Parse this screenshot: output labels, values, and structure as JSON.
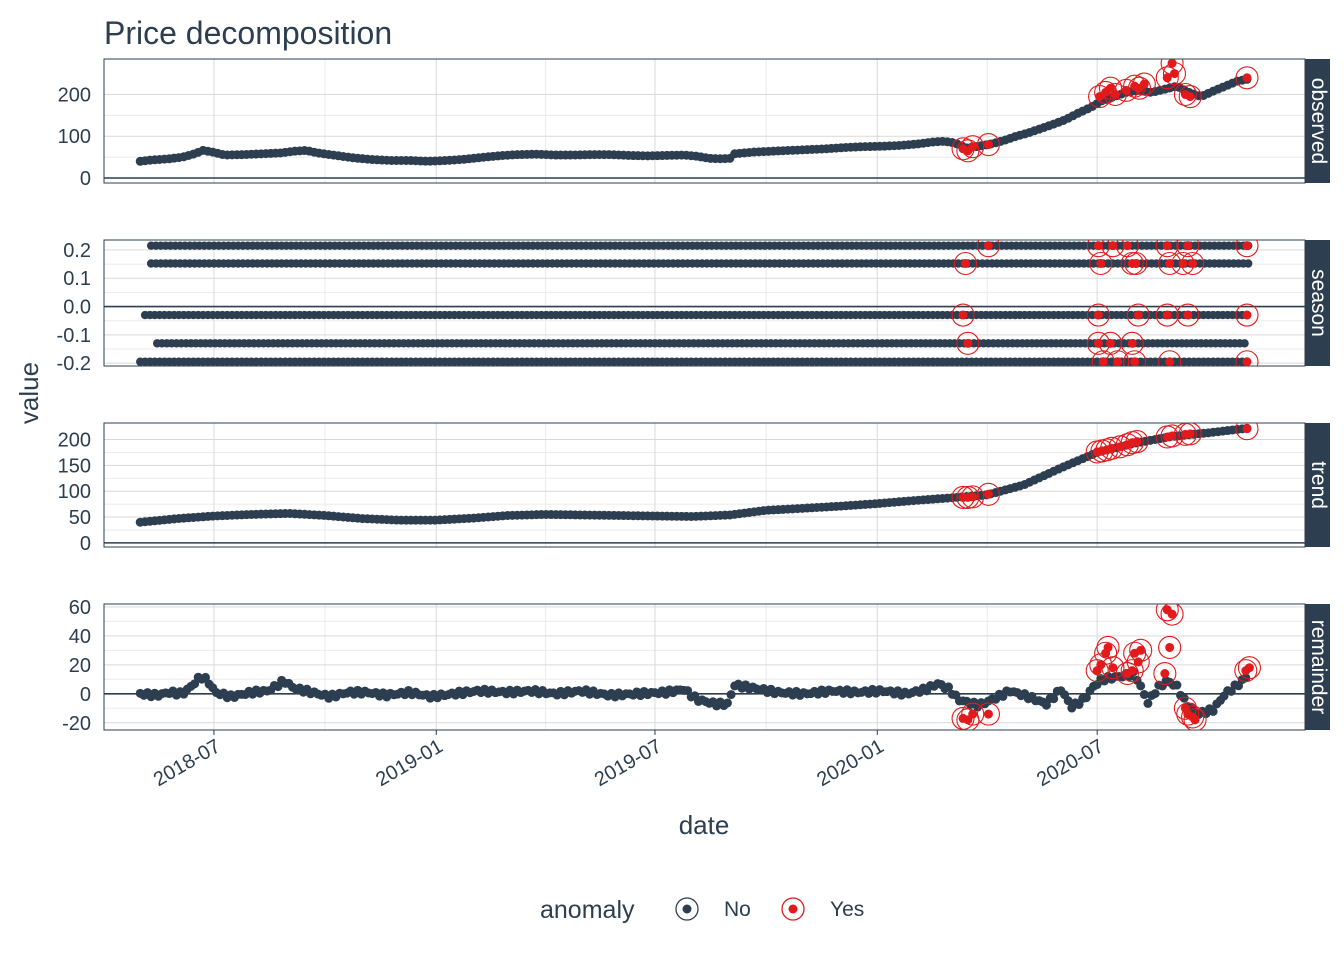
{
  "chart_data": {
    "type": "scatter",
    "title": "Price decomposition",
    "xlabel": "date",
    "ylabel": "value",
    "x_range": [
      "2018-04-01",
      "2020-12-20"
    ],
    "x_ticks": [
      "2018-07",
      "2019-01",
      "2019-07",
      "2020-01",
      "2020-07"
    ],
    "x_tick_dates": [
      "2018-07-01",
      "2019-01-01",
      "2019-07-01",
      "2020-01-01",
      "2020-07-01"
    ],
    "grid": true,
    "legend": {
      "title": "anomaly",
      "position": "bottom",
      "entries": [
        {
          "label": "No",
          "color": "#2c3e50"
        },
        {
          "label": "Yes",
          "color": "#e31a1c"
        }
      ]
    },
    "colors": {
      "normal": "#2c3e50",
      "anomaly": "#e31a1c",
      "strip": "#2c3e50"
    },
    "panels": [
      {
        "name": "observed",
        "ylim": [
          -12,
          285
        ],
        "y_ticks": [
          0,
          100,
          200
        ],
        "y_tick_labels": [
          "0",
          "100",
          "200"
        ],
        "series": [
          [
            "2018-05-01",
            40
          ],
          [
            "2018-05-10",
            43
          ],
          [
            "2018-05-25",
            46
          ],
          [
            "2018-06-05",
            50
          ],
          [
            "2018-06-15",
            58
          ],
          [
            "2018-06-22",
            66
          ],
          [
            "2018-06-30",
            62
          ],
          [
            "2018-07-10",
            55
          ],
          [
            "2018-07-25",
            56
          ],
          [
            "2018-08-10",
            58
          ],
          [
            "2018-08-25",
            60
          ],
          [
            "2018-09-05",
            64
          ],
          [
            "2018-09-15",
            66
          ],
          [
            "2018-09-25",
            60
          ],
          [
            "2018-10-10",
            54
          ],
          [
            "2018-10-25",
            48
          ],
          [
            "2018-11-10",
            44
          ],
          [
            "2018-11-25",
            42
          ],
          [
            "2018-12-10",
            42
          ],
          [
            "2018-12-25",
            40
          ],
          [
            "2019-01-10",
            42
          ],
          [
            "2019-01-25",
            45
          ],
          [
            "2019-02-10",
            50
          ],
          [
            "2019-02-25",
            54
          ],
          [
            "2019-03-10",
            56
          ],
          [
            "2019-03-25",
            57
          ],
          [
            "2019-04-10",
            55
          ],
          [
            "2019-04-25",
            55
          ],
          [
            "2019-05-10",
            56
          ],
          [
            "2019-05-25",
            56
          ],
          [
            "2019-06-10",
            54
          ],
          [
            "2019-06-25",
            53
          ],
          [
            "2019-07-10",
            54
          ],
          [
            "2019-07-25",
            55
          ],
          [
            "2019-08-05",
            52
          ],
          [
            "2019-08-15",
            47
          ],
          [
            "2019-08-25",
            46
          ],
          [
            "2019-09-01",
            47
          ],
          [
            "2019-09-05",
            58
          ],
          [
            "2019-09-20",
            62
          ],
          [
            "2019-10-05",
            64
          ],
          [
            "2019-10-20",
            66
          ],
          [
            "2019-11-05",
            68
          ],
          [
            "2019-11-20",
            70
          ],
          [
            "2019-12-05",
            73
          ],
          [
            "2019-12-20",
            75
          ],
          [
            "2020-01-05",
            76
          ],
          [
            "2020-01-20",
            78
          ],
          [
            "2020-02-05",
            82
          ],
          [
            "2020-02-15",
            86
          ],
          [
            "2020-02-25",
            88
          ],
          [
            "2020-03-05",
            84
          ],
          [
            "2020-03-15",
            72
          ],
          [
            "2020-03-25",
            76
          ],
          [
            "2020-04-05",
            82
          ],
          [
            "2020-04-15",
            90
          ],
          [
            "2020-04-25",
            100
          ],
          [
            "2020-05-05",
            108
          ],
          [
            "2020-05-15",
            118
          ],
          [
            "2020-05-25",
            128
          ],
          [
            "2020-06-05",
            140
          ],
          [
            "2020-06-15",
            155
          ],
          [
            "2020-06-25",
            168
          ],
          [
            "2020-07-05",
            185
          ],
          [
            "2020-07-15",
            195
          ],
          [
            "2020-07-25",
            205
          ],
          [
            "2020-08-05",
            210
          ],
          [
            "2020-08-15",
            205
          ],
          [
            "2020-08-25",
            212
          ],
          [
            "2020-09-05",
            220
          ],
          [
            "2020-09-15",
            205
          ],
          [
            "2020-09-25",
            195
          ],
          [
            "2020-10-05",
            208
          ],
          [
            "2020-10-15",
            220
          ],
          [
            "2020-10-25",
            232
          ],
          [
            "2020-11-05",
            238
          ]
        ],
        "anomalies": [
          [
            "2020-03-12",
            70
          ],
          [
            "2020-03-16",
            65
          ],
          [
            "2020-03-20",
            75
          ],
          [
            "2020-04-02",
            80
          ],
          [
            "2020-07-03",
            195
          ],
          [
            "2020-07-08",
            205
          ],
          [
            "2020-07-12",
            215
          ],
          [
            "2020-07-16",
            200
          ],
          [
            "2020-07-25",
            210
          ],
          [
            "2020-08-01",
            220
          ],
          [
            "2020-08-05",
            215
          ],
          [
            "2020-08-09",
            225
          ],
          [
            "2020-08-28",
            240
          ],
          [
            "2020-09-01",
            275
          ],
          [
            "2020-09-03",
            250
          ],
          [
            "2020-09-12",
            200
          ],
          [
            "2020-09-16",
            195
          ],
          [
            "2020-11-02",
            240
          ]
        ]
      },
      {
        "name": "season",
        "ylim": [
          -0.21,
          0.235
        ],
        "y_ticks": [
          -0.2,
          -0.1,
          0.0,
          0.1,
          0.2
        ],
        "y_tick_labels": [
          "-0.2",
          "-0.1",
          "0.0",
          "0.1",
          "0.2"
        ],
        "levels": [
          0.215,
          0.152,
          -0.03,
          -0.13,
          -0.195
        ],
        "level_starts": [
          "2018-05-10",
          "2018-05-10",
          "2018-05-05",
          "2018-05-15",
          "2018-05-01"
        ],
        "anomalies": [
          [
            "2020-03-14",
            0.152
          ],
          [
            "2020-04-02",
            0.215
          ],
          [
            "2020-03-12",
            -0.03
          ],
          [
            "2020-03-16",
            -0.13
          ],
          [
            "2020-07-02",
            0.215
          ],
          [
            "2020-07-04",
            0.152
          ],
          [
            "2020-07-02",
            -0.03
          ],
          [
            "2020-07-02",
            -0.13
          ],
          [
            "2020-07-06",
            -0.195
          ],
          [
            "2020-07-14",
            0.215
          ],
          [
            "2020-07-18",
            -0.195
          ],
          [
            "2020-07-12",
            -0.13
          ],
          [
            "2020-07-26",
            0.215
          ],
          [
            "2020-07-30",
            0.152
          ],
          [
            "2020-08-02",
            0.152
          ],
          [
            "2020-08-04",
            -0.03
          ],
          [
            "2020-07-30",
            -0.13
          ],
          [
            "2020-08-01",
            -0.195
          ],
          [
            "2020-08-28",
            0.215
          ],
          [
            "2020-08-30",
            0.152
          ],
          [
            "2020-08-28",
            -0.03
          ],
          [
            "2020-08-30",
            -0.195
          ],
          [
            "2020-09-10",
            0.152
          ],
          [
            "2020-09-14",
            0.215
          ],
          [
            "2020-09-18",
            0.152
          ],
          [
            "2020-09-14",
            -0.03
          ],
          [
            "2020-11-02",
            0.215
          ],
          [
            "2020-11-02",
            -0.03
          ],
          [
            "2020-11-02",
            -0.195
          ]
        ]
      },
      {
        "name": "trend",
        "ylim": [
          -8,
          232
        ],
        "y_ticks": [
          0,
          50,
          100,
          150,
          200
        ],
        "y_tick_labels": [
          "0",
          "50",
          "100",
          "150",
          "200"
        ],
        "series": [
          [
            "2018-05-01",
            40
          ],
          [
            "2018-06-01",
            47
          ],
          [
            "2018-07-01",
            52
          ],
          [
            "2018-08-01",
            55
          ],
          [
            "2018-09-01",
            57
          ],
          [
            "2018-10-01",
            53
          ],
          [
            "2018-11-01",
            47
          ],
          [
            "2018-12-01",
            44
          ],
          [
            "2019-01-01",
            44
          ],
          [
            "2019-02-01",
            48
          ],
          [
            "2019-03-01",
            53
          ],
          [
            "2019-04-01",
            55
          ],
          [
            "2019-05-01",
            54
          ],
          [
            "2019-06-01",
            53
          ],
          [
            "2019-07-01",
            52
          ],
          [
            "2019-08-01",
            51
          ],
          [
            "2019-09-01",
            54
          ],
          [
            "2019-10-01",
            63
          ],
          [
            "2019-11-01",
            67
          ],
          [
            "2019-12-01",
            71
          ],
          [
            "2020-01-01",
            76
          ],
          [
            "2020-02-01",
            82
          ],
          [
            "2020-03-01",
            87
          ],
          [
            "2020-04-01",
            93
          ],
          [
            "2020-05-01",
            112
          ],
          [
            "2020-06-01",
            145
          ],
          [
            "2020-07-01",
            175
          ],
          [
            "2020-08-01",
            193
          ],
          [
            "2020-09-01",
            206
          ],
          [
            "2020-10-01",
            213
          ],
          [
            "2020-11-03",
            222
          ]
        ],
        "anomalies": [
          [
            "2020-03-12",
            88
          ],
          [
            "2020-03-16",
            88
          ],
          [
            "2020-03-20",
            89
          ],
          [
            "2020-04-02",
            94
          ],
          [
            "2020-07-01",
            176
          ],
          [
            "2020-07-05",
            178
          ],
          [
            "2020-07-09",
            180
          ],
          [
            "2020-07-13",
            183
          ],
          [
            "2020-07-20",
            186
          ],
          [
            "2020-07-26",
            190
          ],
          [
            "2020-07-30",
            194
          ],
          [
            "2020-08-03",
            196
          ],
          [
            "2020-08-28",
            205
          ],
          [
            "2020-09-01",
            207
          ],
          [
            "2020-09-12",
            210
          ],
          [
            "2020-09-16",
            211
          ],
          [
            "2020-11-02",
            221
          ]
        ]
      },
      {
        "name": "remainder",
        "ylim": [
          -25,
          62
        ],
        "y_ticks": [
          -20,
          0,
          20,
          40,
          60
        ],
        "y_tick_labels": [
          "-20",
          "0",
          "20",
          "40",
          "60"
        ],
        "series": [
          [
            "2018-05-01",
            0
          ],
          [
            "2018-05-15",
            -1
          ],
          [
            "2018-05-25",
            1
          ],
          [
            "2018-06-05",
            0
          ],
          [
            "2018-06-12",
            5
          ],
          [
            "2018-06-20",
            12
          ],
          [
            "2018-06-26",
            9
          ],
          [
            "2018-07-02",
            1
          ],
          [
            "2018-07-15",
            -2
          ],
          [
            "2018-08-01",
            1
          ],
          [
            "2018-08-15",
            2
          ],
          [
            "2018-08-28",
            9
          ],
          [
            "2018-09-05",
            4
          ],
          [
            "2018-09-20",
            1
          ],
          [
            "2018-10-05",
            -2
          ],
          [
            "2018-10-20",
            1
          ],
          [
            "2018-11-05",
            1
          ],
          [
            "2018-11-20",
            -1
          ],
          [
            "2018-12-10",
            1
          ],
          [
            "2018-12-28",
            -2
          ],
          [
            "2019-01-15",
            0
          ],
          [
            "2019-02-05",
            2
          ],
          [
            "2019-03-01",
            1
          ],
          [
            "2019-03-20",
            2
          ],
          [
            "2019-04-10",
            0
          ],
          [
            "2019-05-01",
            2
          ],
          [
            "2019-05-25",
            -1
          ],
          [
            "2019-06-15",
            0
          ],
          [
            "2019-07-10",
            1
          ],
          [
            "2019-07-25",
            3
          ],
          [
            "2019-08-05",
            -4
          ],
          [
            "2019-08-20",
            -7
          ],
          [
            "2019-08-30",
            -7
          ],
          [
            "2019-09-05",
            6
          ],
          [
            "2019-09-20",
            4
          ],
          [
            "2019-10-10",
            1
          ],
          [
            "2019-11-01",
            0
          ],
          [
            "2019-11-25",
            2
          ],
          [
            "2019-12-15",
            1
          ],
          [
            "2020-01-05",
            2
          ],
          [
            "2020-01-25",
            0
          ],
          [
            "2020-02-10",
            3
          ],
          [
            "2020-02-20",
            7
          ],
          [
            "2020-03-01",
            3
          ],
          [
            "2020-03-08",
            -4
          ],
          [
            "2020-03-25",
            -8
          ],
          [
            "2020-04-05",
            -4
          ],
          [
            "2020-04-20",
            2
          ],
          [
            "2020-05-05",
            -2
          ],
          [
            "2020-05-20",
            -7
          ],
          [
            "2020-06-01",
            3
          ],
          [
            "2020-06-10",
            -9
          ],
          [
            "2020-06-20",
            -4
          ],
          [
            "2020-06-28",
            5
          ],
          [
            "2020-07-05",
            10
          ],
          [
            "2020-07-20",
            12
          ],
          [
            "2020-08-01",
            14
          ],
          [
            "2020-08-12",
            -6
          ],
          [
            "2020-08-20",
            4
          ],
          [
            "2020-08-28",
            9
          ],
          [
            "2020-09-05",
            5
          ],
          [
            "2020-09-12",
            -6
          ],
          [
            "2020-09-22",
            -14
          ],
          [
            "2020-10-05",
            -11
          ],
          [
            "2020-10-15",
            0
          ],
          [
            "2020-10-25",
            6
          ],
          [
            "2020-11-02",
            12
          ]
        ],
        "anomalies": [
          [
            "2020-03-12",
            -17
          ],
          [
            "2020-03-16",
            -18
          ],
          [
            "2020-03-20",
            -14
          ],
          [
            "2020-04-02",
            -14
          ],
          [
            "2020-07-01",
            16
          ],
          [
            "2020-07-04",
            20
          ],
          [
            "2020-07-08",
            28
          ],
          [
            "2020-07-10",
            32
          ],
          [
            "2020-07-14",
            18
          ],
          [
            "2020-07-26",
            14
          ],
          [
            "2020-07-30",
            16
          ],
          [
            "2020-08-01",
            28
          ],
          [
            "2020-08-04",
            22
          ],
          [
            "2020-08-06",
            30
          ],
          [
            "2020-08-28",
            58
          ],
          [
            "2020-09-01",
            55
          ],
          [
            "2020-08-30",
            32
          ],
          [
            "2020-08-26",
            14
          ],
          [
            "2020-09-12",
            -10
          ],
          [
            "2020-09-14",
            -14
          ],
          [
            "2020-09-18",
            -16
          ],
          [
            "2020-09-20",
            -18
          ],
          [
            "2020-11-01",
            16
          ],
          [
            "2020-11-04",
            18
          ]
        ]
      }
    ]
  }
}
